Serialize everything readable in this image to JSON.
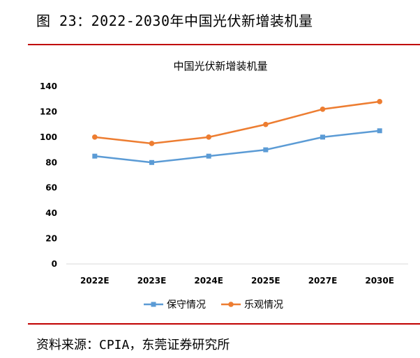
{
  "figure_title": "图 23：2022-2030年中国光伏新增装机量",
  "source": "资料来源：CPIA，东莞证券研究所",
  "chart_data": {
    "type": "line",
    "title": "中国光伏新增装机量",
    "categories": [
      "2022E",
      "2023E",
      "2024E",
      "2025E",
      "2027E",
      "2030E"
    ],
    "series": [
      {
        "name": "保守情况",
        "values": [
          85,
          80,
          85,
          90,
          100,
          105
        ],
        "color": "#5b9bd5",
        "marker": "square"
      },
      {
        "name": "乐观情况",
        "values": [
          100,
          95,
          100,
          110,
          122,
          128
        ],
        "color": "#ed7d31",
        "marker": "circle"
      }
    ],
    "yticks": [
      0,
      20,
      40,
      60,
      80,
      100,
      120,
      140
    ],
    "ylim": [
      0,
      140
    ],
    "grid": false,
    "legend": "bottom"
  }
}
